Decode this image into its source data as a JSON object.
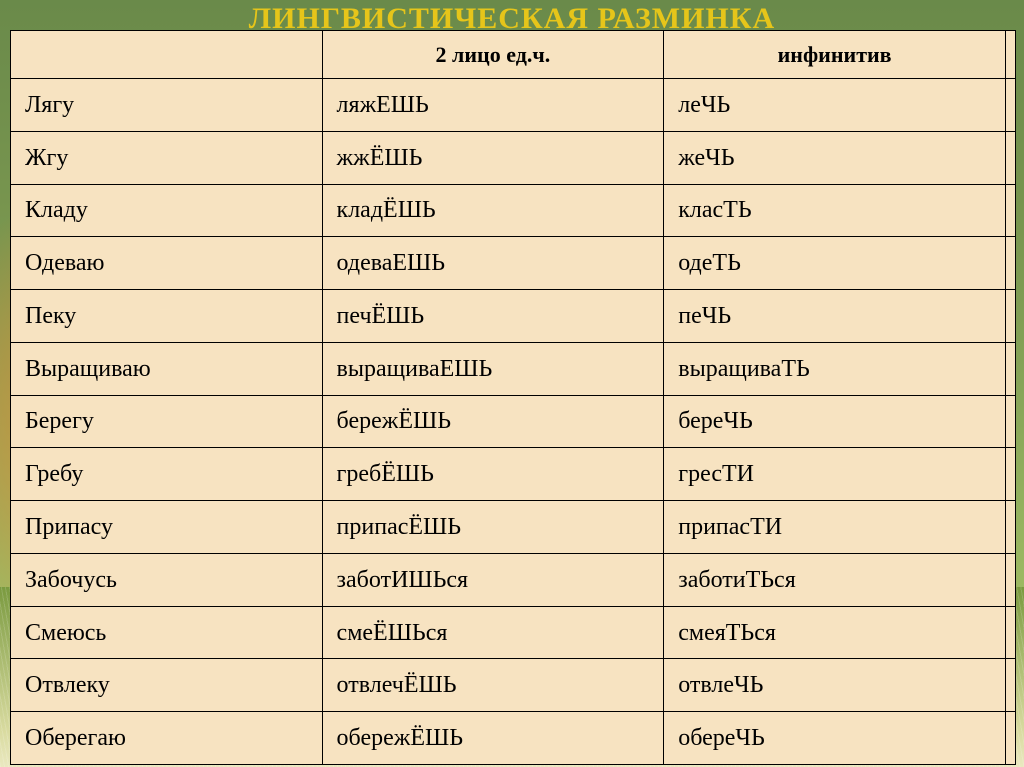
{
  "title": {
    "text": "ЛИНГВИСТИЧЕСКАЯ РАЗМИНКА",
    "color": "#e6c51a"
  },
  "table": {
    "background_color": "#f7e3c1",
    "border_color": "#000000",
    "columns": [
      "",
      "2 лицо ед.ч.",
      "инфинитив"
    ],
    "rows": [
      [
        "Лягу",
        "ляжЕШЬ",
        "леЧЬ"
      ],
      [
        "Жгу",
        "жжЁШЬ",
        "жеЧЬ"
      ],
      [
        "Кладу",
        "кладЁШЬ",
        "класТЬ"
      ],
      [
        "Одеваю",
        "одеваЕШЬ",
        "одеТЬ"
      ],
      [
        "Пеку",
        "печЁШЬ",
        "пеЧЬ"
      ],
      [
        "Выращиваю",
        "выращиваЕШЬ",
        "выращиваТЬ"
      ],
      [
        "Берегу",
        "бережЁШЬ",
        "береЧЬ"
      ],
      [
        "Гребу",
        "гребЁШЬ",
        "гресТИ"
      ],
      [
        "Припасу",
        "припасЁШЬ",
        "припасТИ"
      ],
      [
        "Забочусь",
        "заботИШЬся",
        "заботиТЬся"
      ],
      [
        "Смеюсь",
        "смеЁШЬся",
        "смеяТЬся"
      ],
      [
        "Отвлеку",
        "отвлечЁШЬ",
        "отвлеЧЬ"
      ],
      [
        "Оберегаю",
        "обережЁШЬ",
        "обереЧЬ"
      ]
    ]
  }
}
